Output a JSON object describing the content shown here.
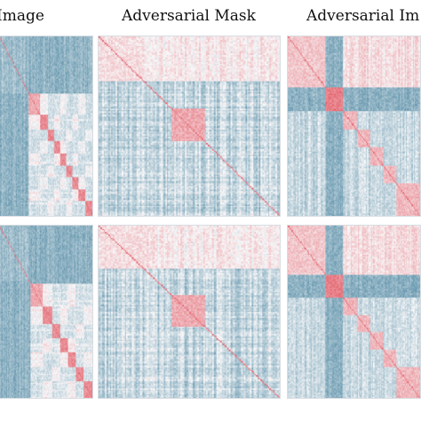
{
  "columns": [
    {
      "title": "Image"
    },
    {
      "title": "Adversarial Mask"
    },
    {
      "title": "Adversarial Im"
    }
  ],
  "colors": {
    "base_blue": "#e9f0f4",
    "mid_blue": "#9fbfce",
    "dark_blue": "#5f93ab",
    "red": "#e56a74",
    "light_red": "#f6c9cd"
  },
  "chart_data": {
    "type": "heatmap",
    "panels": [
      {
        "row": 1,
        "column": "Image"
      },
      {
        "row": 1,
        "column": "Adversarial Mask"
      },
      {
        "row": 1,
        "column": "Adversarial Im"
      },
      {
        "row": 2,
        "column": "Image"
      },
      {
        "row": 2,
        "column": "Adversarial Mask"
      },
      {
        "row": 2,
        "column": "Adversarial Im"
      }
    ]
  }
}
